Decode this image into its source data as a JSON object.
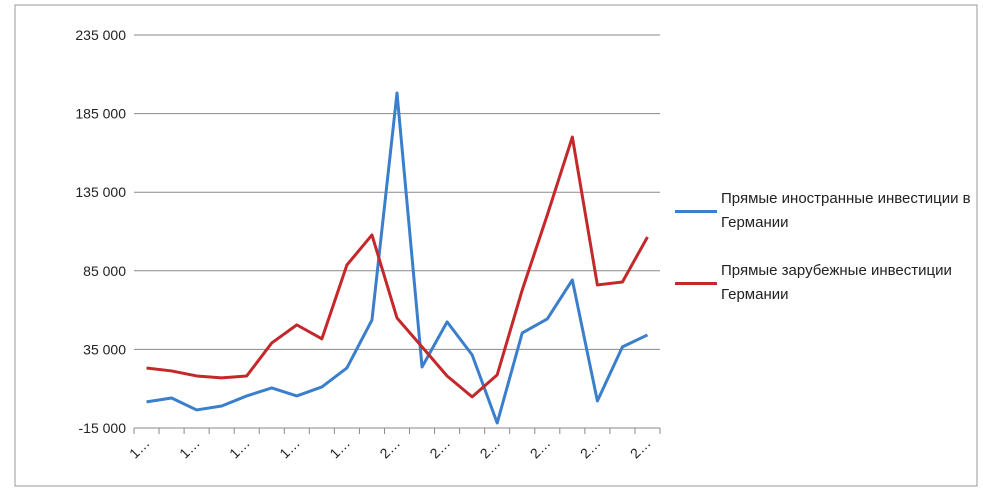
{
  "chart_data": {
    "type": "line",
    "categories": [
      "1…",
      null,
      "1…",
      null,
      "1…",
      null,
      "1…",
      null,
      "1…",
      null,
      "2…",
      null,
      "2…",
      null,
      "2…",
      null,
      "2…",
      null,
      "2…",
      null,
      "2…"
    ],
    "series": [
      {
        "name": "Прямые иностранные инвестиции в Германии",
        "color": "#3a7fcc",
        "values": [
          1600,
          4100,
          -3500,
          -1000,
          5400,
          10500,
          5400,
          11100,
          23200,
          53700,
          198100,
          23800,
          52500,
          31500,
          -11800,
          45500,
          54400,
          79200,
          2200,
          36600,
          44200
        ]
      },
      {
        "name": "Прямые зарубежные инвестиции Германии",
        "color": "#c4282b",
        "values": [
          23200,
          21300,
          18100,
          16900,
          18100,
          39100,
          50600,
          41700,
          88700,
          107800,
          55000,
          36600,
          18100,
          4800,
          18800,
          72800,
          120500,
          170100,
          76000,
          77900,
          106500
        ]
      }
    ],
    "ylim": [
      -15000,
      235000
    ],
    "yticks": [
      {
        "value": -15000,
        "label": "-15 000"
      },
      {
        "value": 35000,
        "label": "35 000"
      },
      {
        "value": 85000,
        "label": "85 000"
      },
      {
        "value": 135000,
        "label": "135 000"
      },
      {
        "value": 185000,
        "label": "185 000"
      },
      {
        "value": 235000,
        "label": "235 000"
      }
    ],
    "grid": true,
    "legend": "right"
  }
}
